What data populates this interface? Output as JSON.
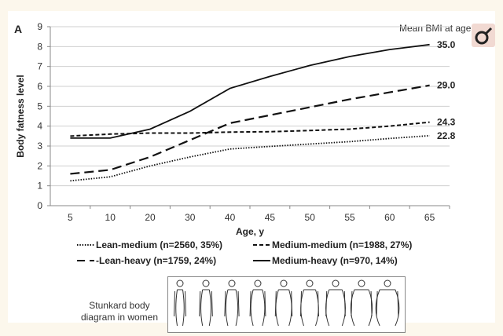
{
  "chart_data": {
    "type": "line",
    "panel_label": "A",
    "title": "",
    "xlabel": "Age, y",
    "ylabel": "Body fatness level",
    "ylim": [
      0,
      9
    ],
    "yticks": [
      "0",
      "1",
      "2",
      "3",
      "4",
      "5",
      "6",
      "7",
      "8",
      "9"
    ],
    "categories": [
      "5",
      "10",
      "20",
      "30",
      "40",
      "45",
      "50",
      "55",
      "60",
      "65"
    ],
    "grid": true,
    "annotation_header": "Mean BMI at age",
    "series": [
      {
        "name": "Lean-medium (n=2560, 35%)",
        "style": "dotted",
        "end_label": "22.8",
        "values": [
          1.25,
          1.45,
          2.0,
          2.45,
          2.85,
          2.98,
          3.1,
          3.22,
          3.38,
          3.52
        ]
      },
      {
        "name": "Medium-medium (n=1988, 27%)",
        "style": "short-dash",
        "end_label": "24.3",
        "values": [
          3.5,
          3.6,
          3.65,
          3.65,
          3.7,
          3.72,
          3.78,
          3.85,
          4.0,
          4.2
        ]
      },
      {
        "name": "-Lean-heavy (n=1759, 24%)",
        "style": "long-dash",
        "end_label": "29.0",
        "values": [
          1.6,
          1.8,
          2.45,
          3.3,
          4.15,
          4.55,
          4.95,
          5.35,
          5.7,
          6.05
        ]
      },
      {
        "name": "Medium-heavy (n=970, 14%)",
        "style": "solid",
        "end_label": "35.0",
        "values": [
          3.4,
          3.4,
          3.85,
          4.75,
          5.9,
          6.5,
          7.05,
          7.5,
          7.85,
          8.1
        ]
      }
    ],
    "legend_placement": "bottom"
  },
  "figure_caption": "Stunkard body diagram in women"
}
